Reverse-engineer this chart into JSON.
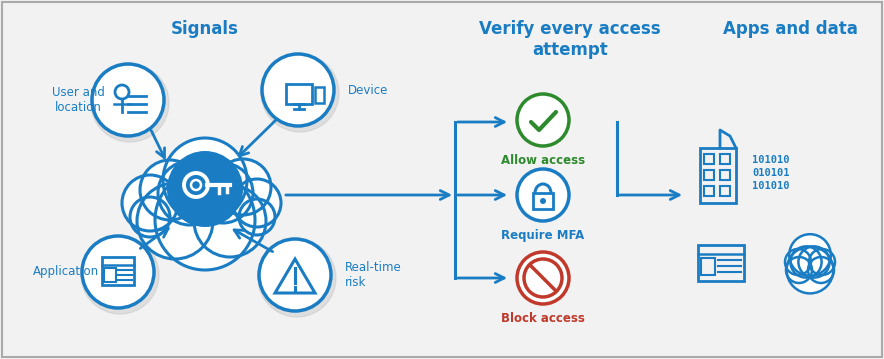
{
  "bg_color": "#f2f2f2",
  "blue": "#1a7dc4",
  "green": "#2d8a2d",
  "orange": "#c0392b",
  "title_signals": "Signals",
  "title_verify": "Verify every access\nattempt",
  "title_apps": "Apps and data",
  "label_user": "User and\nlocation",
  "label_device": "Device",
  "label_application": "Application",
  "label_realtime": "Real-time\nrisk",
  "label_allow": "Allow access",
  "label_mfa": "Require MFA",
  "label_block": "Block access",
  "binary1": "101010\n010101\n101010",
  "figsize": [
    8.84,
    3.59
  ],
  "dpi": 100
}
